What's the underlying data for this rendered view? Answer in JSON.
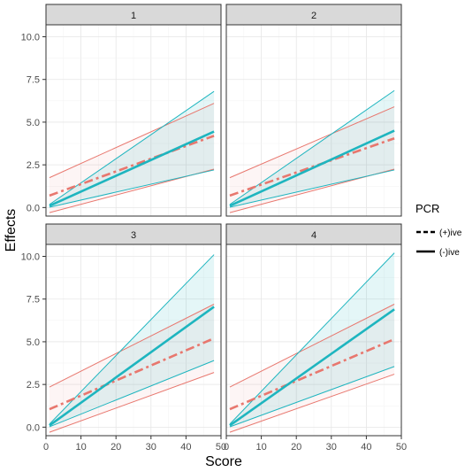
{
  "chart_data": {
    "type": "line",
    "facet_type": "grid-2x2",
    "panels": [
      "1",
      "2",
      "3",
      "4"
    ],
    "xlabel": "Score",
    "ylabel": "Effects",
    "xlim": [
      0,
      50
    ],
    "ylim": [
      -0.5,
      10.7
    ],
    "x_ticks": [
      0,
      10,
      20,
      30,
      40,
      50
    ],
    "y_ticks": [
      0.0,
      2.5,
      5.0,
      7.5,
      10.0
    ],
    "x_tick_labels": [
      "0",
      "10",
      "20",
      "30",
      "40",
      "50"
    ],
    "y_tick_labels": [
      "0.0",
      "2.5",
      "5.0",
      "7.5",
      "10.0"
    ],
    "grid": true,
    "legend": {
      "title": "PCR",
      "position": "right",
      "entries": [
        {
          "label": "(+)ive",
          "linetype": "dashed",
          "color": "#E8776E"
        },
        {
          "label": "(-)ive",
          "linetype": "solid",
          "color": "#1EB5BF"
        }
      ]
    },
    "x": [
      1,
      48
    ],
    "series_by_panel": {
      "1": [
        {
          "legend": "(+)ive",
          "fit": [
            0.7,
            4.2
          ],
          "lower": [
            -0.3,
            2.25
          ],
          "upper": [
            1.75,
            6.1
          ]
        },
        {
          "legend": "(-)ive",
          "fit": [
            0.1,
            4.45
          ],
          "lower": [
            0.02,
            2.2
          ],
          "upper": [
            0.18,
            6.8
          ]
        }
      ],
      "2": [
        {
          "legend": "(+)ive",
          "fit": [
            0.7,
            4.05
          ],
          "lower": [
            -0.3,
            2.25
          ],
          "upper": [
            1.75,
            5.9
          ]
        },
        {
          "legend": "(-)ive",
          "fit": [
            0.1,
            4.5
          ],
          "lower": [
            0.02,
            2.2
          ],
          "upper": [
            0.18,
            6.85
          ]
        }
      ],
      "3": [
        {
          "legend": "(+)ive",
          "fit": [
            1.05,
            5.2
          ],
          "lower": [
            -0.3,
            3.2
          ],
          "upper": [
            2.35,
            7.2
          ]
        },
        {
          "legend": "(-)ive",
          "fit": [
            0.1,
            7.05
          ],
          "lower": [
            0.02,
            3.9
          ],
          "upper": [
            0.18,
            10.1
          ]
        }
      ],
      "4": [
        {
          "legend": "(+)ive",
          "fit": [
            1.05,
            5.15
          ],
          "lower": [
            -0.3,
            3.1
          ],
          "upper": [
            2.35,
            7.2
          ]
        },
        {
          "legend": "(-)ive",
          "fit": [
            0.1,
            6.9
          ],
          "lower": [
            0.02,
            3.55
          ],
          "upper": [
            0.18,
            10.2
          ]
        }
      ]
    }
  }
}
